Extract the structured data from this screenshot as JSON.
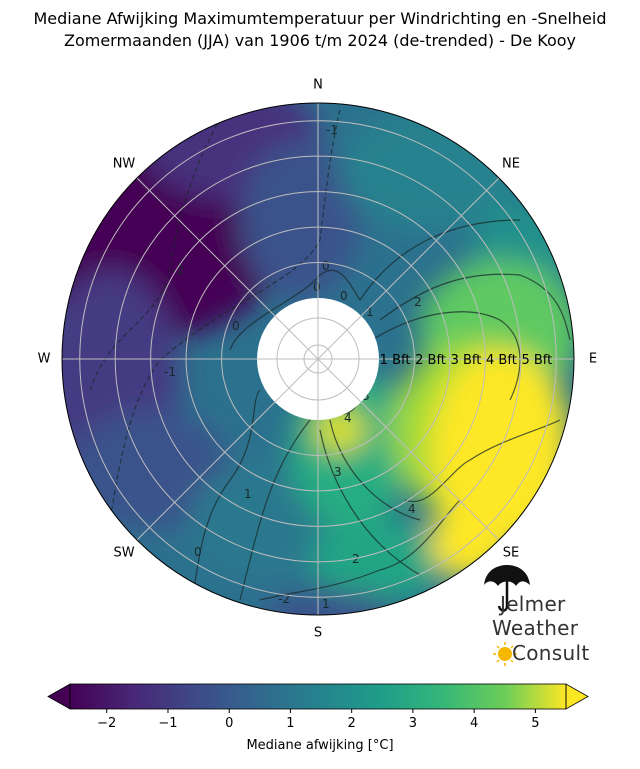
{
  "chart_data": {
    "type": "heatmap",
    "subtype": "polar-contour",
    "title_line1": "Mediane Afwijking Maximumtemperatuur per Windrichting en -Snelheid",
    "title_line2": "Zomermaanden (JJA) van 1906 t/m 2024 (de-trended) - De Kooy",
    "directions": [
      "N",
      "NE",
      "E",
      "SE",
      "S",
      "SW",
      "W",
      "NW"
    ],
    "radial_labels": [
      "1 Bft",
      "2 Bft",
      "3 Bft",
      "4 Bft",
      "5 Bft"
    ],
    "radial_range": [
      0,
      5.5
    ],
    "contour_levels": [
      -2,
      -1,
      0,
      1,
      2,
      3,
      4
    ],
    "contour_label_texts": [
      "-2",
      "-1",
      "0",
      "0",
      "0",
      "0",
      "0",
      "1",
      "1",
      "2",
      "2",
      "3",
      "3",
      "4",
      "4",
      "-1",
      "-2",
      "1"
    ],
    "colorbar": {
      "label": "Mediane afwijking [°C]",
      "range": [
        -2.6,
        5.5
      ],
      "ticks": [
        "−2",
        "−1",
        "0",
        "1",
        "2",
        "3",
        "4",
        "5"
      ],
      "tick_values": [
        -2,
        -1,
        0,
        1,
        2,
        3,
        4,
        5
      ],
      "colormap": "viridis",
      "extend": "both"
    },
    "grid": true
  },
  "logo": {
    "line1": "Jelmer",
    "line2": "Weather",
    "line3": "Consult"
  },
  "colors": {
    "v0": "#440154",
    "v1": "#3b528b",
    "v2": "#21918c",
    "v3": "#5ec962",
    "v4": "#fde725"
  }
}
